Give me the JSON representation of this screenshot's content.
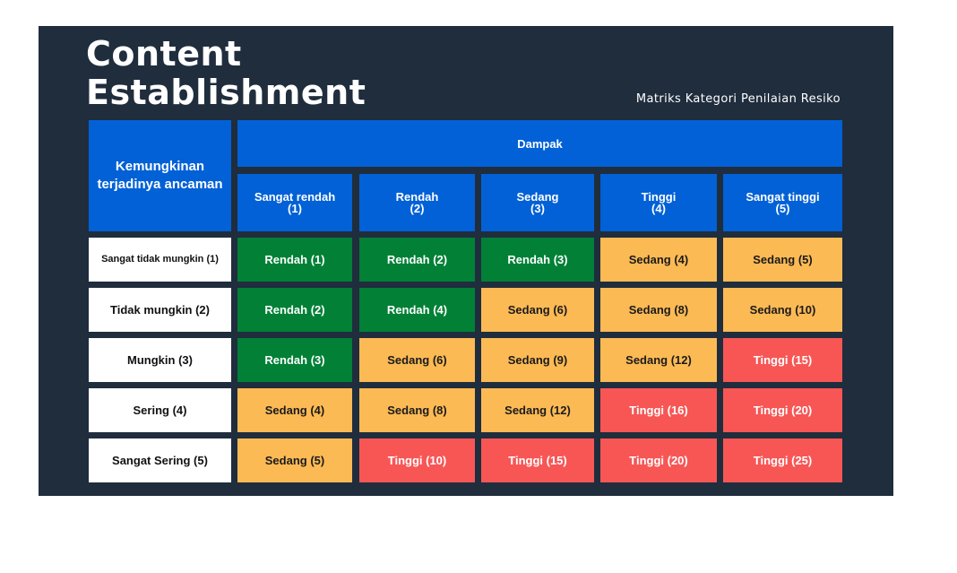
{
  "title_line1": "Content",
  "title_line2": "Establishment",
  "subtitle": "Matriks Kategori Penilaian Resiko",
  "colors": {
    "background": "#1f2d3d",
    "header_blue": "#0261d6",
    "low_green": "#018036",
    "medium_yellow": "#fcba55",
    "high_red": "#f75655"
  },
  "matrix": {
    "corner_label": "Kemungkinan terjadinya ancaman",
    "impact_header": "Dampak",
    "columns": [
      {
        "name": "Sangat rendah",
        "score": "(1)"
      },
      {
        "name": "Rendah",
        "score": "(2)"
      },
      {
        "name": "Sedang",
        "score": "(3)"
      },
      {
        "name": "Tinggi",
        "score": "(4)"
      },
      {
        "name": "Sangat tinggi",
        "score": "(5)"
      }
    ],
    "rows": [
      {
        "label": "Sangat tidak mungkin (1)",
        "cells": [
          {
            "text": "Rendah (1)",
            "level": "rendah"
          },
          {
            "text": "Rendah (2)",
            "level": "rendah"
          },
          {
            "text": "Rendah (3)",
            "level": "rendah"
          },
          {
            "text": "Sedang (4)",
            "level": "sedang"
          },
          {
            "text": "Sedang (5)",
            "level": "sedang"
          }
        ]
      },
      {
        "label": "Tidak mungkin (2)",
        "cells": [
          {
            "text": "Rendah (2)",
            "level": "rendah"
          },
          {
            "text": "Rendah (4)",
            "level": "rendah"
          },
          {
            "text": "Sedang (6)",
            "level": "sedang"
          },
          {
            "text": "Sedang (8)",
            "level": "sedang"
          },
          {
            "text": "Sedang (10)",
            "level": "sedang"
          }
        ]
      },
      {
        "label": "Mungkin (3)",
        "cells": [
          {
            "text": "Rendah (3)",
            "level": "rendah"
          },
          {
            "text": "Sedang (6)",
            "level": "sedang"
          },
          {
            "text": "Sedang (9)",
            "level": "sedang"
          },
          {
            "text": "Sedang (12)",
            "level": "sedang"
          },
          {
            "text": "Tinggi (15)",
            "level": "tinggi"
          }
        ]
      },
      {
        "label": "Sering (4)",
        "cells": [
          {
            "text": "Sedang (4)",
            "level": "sedang"
          },
          {
            "text": "Sedang (8)",
            "level": "sedang"
          },
          {
            "text": "Sedang (12)",
            "level": "sedang"
          },
          {
            "text": "Tinggi (16)",
            "level": "tinggi"
          },
          {
            "text": "Tinggi (20)",
            "level": "tinggi"
          }
        ]
      },
      {
        "label": "Sangat Sering (5)",
        "cells": [
          {
            "text": "Sedang (5)",
            "level": "sedang"
          },
          {
            "text": "Tinggi (10)",
            "level": "tinggi"
          },
          {
            "text": "Tinggi (15)",
            "level": "tinggi"
          },
          {
            "text": "Tinggi (20)",
            "level": "tinggi"
          },
          {
            "text": "Tinggi (25)",
            "level": "tinggi"
          }
        ]
      }
    ]
  }
}
